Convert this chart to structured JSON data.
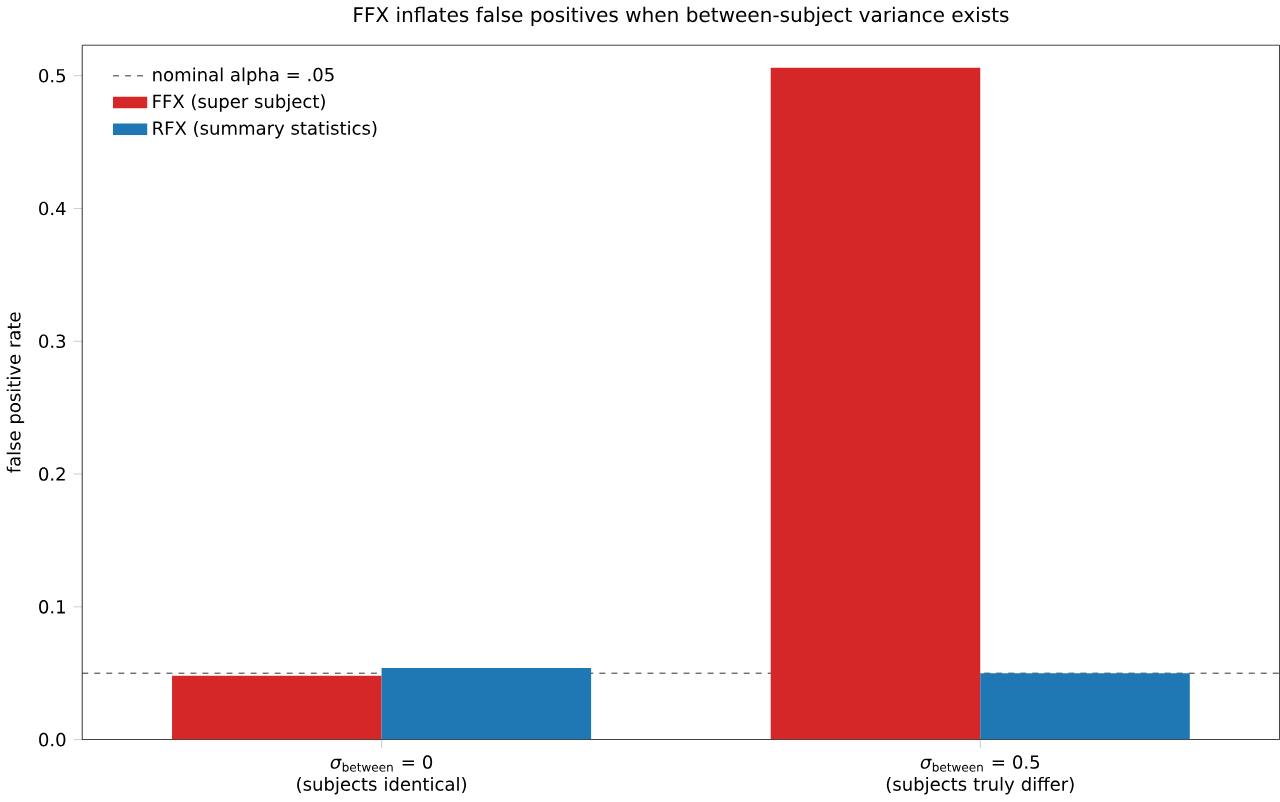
{
  "chart_data": {
    "type": "bar",
    "title": "FFX inflates false positives when between-subject variance exists",
    "ylabel": "false positive rate",
    "categories": [
      "*σ*$_{between}$ = 0\n(subjects identical)",
      "*σ*$_{between}$ = 0.5\n(subjects truly differ)"
    ],
    "series": [
      {
        "name": "FFX (super subject)",
        "color": "#d62728",
        "values": [
          0.048,
          0.506
        ]
      },
      {
        "name": "RFX (summary statistics)",
        "color": "#1f77b4",
        "values": [
          0.054,
          0.05
        ]
      }
    ],
    "ylim": [
      0,
      0.523
    ],
    "yticks": [
      {
        "value": 0,
        "label": "0.0"
      },
      0.1,
      0.2,
      0.3,
      0.4,
      0.5
    ],
    "ref_lines": [
      {
        "axis": "y",
        "value": 0.05,
        "label": "nominal alpha = .05",
        "color": "#000000",
        "line_style": "dashed"
      }
    ],
    "legend": "top left"
  }
}
